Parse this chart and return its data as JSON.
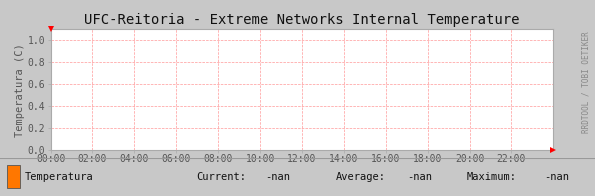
{
  "title": "UFC-Reitoria - Extreme Networks Internal Temperature",
  "ylabel": "Temperatura (C)",
  "outer_bg_color": "#c8c8c8",
  "plot_bg_color": "#ffffff",
  "grid_color": "#ff9999",
  "yticks": [
    0.0,
    0.2,
    0.4,
    0.6,
    0.8,
    1.0
  ],
  "ylim": [
    0.0,
    1.1
  ],
  "xlim": [
    0,
    12
  ],
  "xtick_positions": [
    0,
    1,
    2,
    3,
    4,
    5,
    6,
    7,
    8,
    9,
    10,
    11
  ],
  "xtick_labels": [
    "00:00",
    "02:00",
    "04:00",
    "06:00",
    "08:00",
    "10:00",
    "12:00",
    "14:00",
    "16:00",
    "18:00",
    "20:00",
    "22:00"
  ],
  "legend_label": "Temperatura",
  "legend_color": "#ff7700",
  "current_val": "-nan",
  "average_val": "-nan",
  "maximum_val": "-nan",
  "watermark": "RRDTOOL / TOBI OETIKER",
  "title_fontsize": 10,
  "tick_fontsize": 7,
  "ylabel_fontsize": 7.5,
  "legend_fontsize": 7.5,
  "watermark_fontsize": 5.5,
  "spine_color": "#aaaaaa",
  "tick_color": "#555555",
  "legend_bar_bg": "#c8c8c8"
}
